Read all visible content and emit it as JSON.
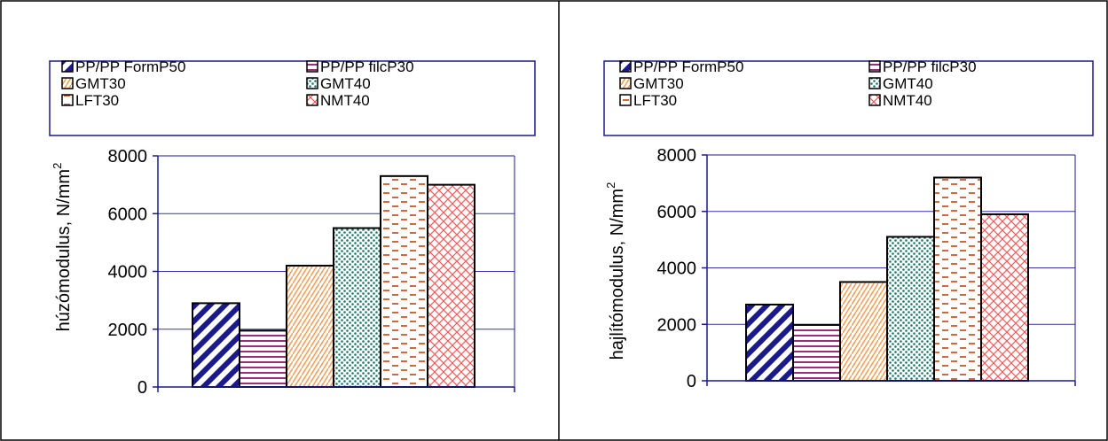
{
  "chart_data": [
    {
      "type": "bar",
      "ylabel": "húzómodulus, N/mm",
      "ylabel_sup": "2",
      "ylim": [
        0,
        8000
      ],
      "yticks": [
        "0",
        "2000",
        "4000",
        "6000",
        "8000"
      ],
      "grid": true,
      "legend_position": "top",
      "series": [
        {
          "name": "PP/PP FormP50",
          "value": 2900
        },
        {
          "name": "PP/PP filcP30",
          "value": 1950
        },
        {
          "name": "GMT30",
          "value": 4200
        },
        {
          "name": "GMT40",
          "value": 5500
        },
        {
          "name": "LFT30",
          "value": 7300
        },
        {
          "name": "NMT40",
          "value": 7000
        }
      ]
    },
    {
      "type": "bar",
      "ylabel": "hajlítómodulus, N/mm",
      "ylabel_sup": "2",
      "ylim": [
        0,
        8000
      ],
      "yticks": [
        "0",
        "2000",
        "4000",
        "6000",
        "8000"
      ],
      "grid": true,
      "legend_position": "top",
      "series": [
        {
          "name": "PP/PP FormP50",
          "value": 2700
        },
        {
          "name": "PP/PP filcP30",
          "value": 1980
        },
        {
          "name": "GMT30",
          "value": 3500
        },
        {
          "name": "GMT40",
          "value": 5100
        },
        {
          "name": "LFT30",
          "value": 7200
        },
        {
          "name": "NMT40",
          "value": 5900
        }
      ]
    }
  ],
  "colors": {
    "axis": "#1a1a8c",
    "gridline": "#3333aa",
    "frame": "#000000",
    "series": [
      "#1a1a8c",
      "#a0307a",
      "#f2a05a",
      "#1a7a6a",
      "#c85a2a",
      "#f05a5a"
    ]
  }
}
